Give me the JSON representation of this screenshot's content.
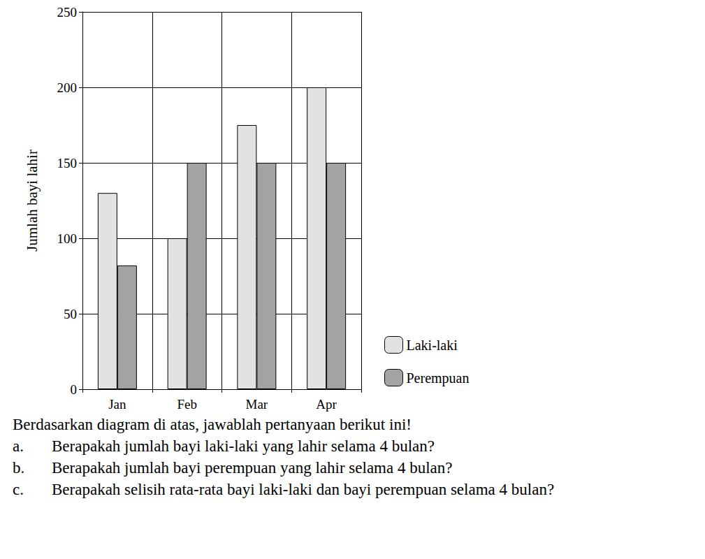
{
  "chart_data": {
    "type": "bar",
    "categories": [
      "Jan",
      "Feb",
      "Mar",
      "Apr"
    ],
    "series": [
      {
        "name": "Laki-laki",
        "color": "#e2e2e2",
        "values": [
          130,
          100,
          175,
          200
        ]
      },
      {
        "name": "Perempuan",
        "color": "#a3a3a3",
        "values": [
          82,
          150,
          150,
          150
        ]
      }
    ],
    "y_label": "Jumlah bayi lahir",
    "ylim": [
      0,
      250
    ],
    "yticks": [
      0,
      50,
      100,
      150,
      200,
      250
    ],
    "grid": true,
    "legend": "right"
  },
  "text": {
    "intro": "Berdasarkan diagram di atas, jawablah pertanyaan berikut ini!",
    "questions": [
      {
        "label": "a.",
        "text": "Berapakah jumlah bayi laki-laki yang lahir selama 4 bulan?"
      },
      {
        "label": "b.",
        "text": "Berapakah jumlah bayi perempuan yang lahir selama 4 bulan?"
      },
      {
        "label": "c.",
        "text": "Berapakah selisih rata-rata bayi laki-laki dan bayi perempuan selama 4 bulan?"
      }
    ]
  }
}
